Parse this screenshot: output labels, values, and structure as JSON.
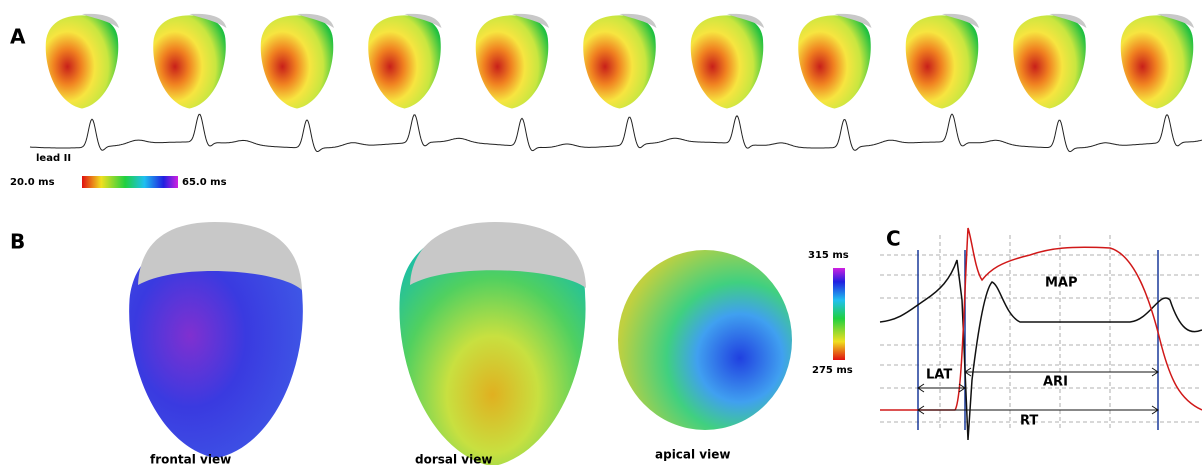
{
  "panels": {
    "a": {
      "label": "A",
      "trace_label": "lead II",
      "colorbar": {
        "min_label": "20.0 ms",
        "max_label": "65.0 ms"
      }
    },
    "b": {
      "label": "B",
      "views": [
        "frontal view",
        "dorsal view",
        "apical view"
      ],
      "colorbar": {
        "max_label": "315 ms",
        "min_label": "275 ms"
      }
    },
    "c": {
      "label": "C",
      "labels": {
        "map": "MAP",
        "lat": "LAT",
        "ari": "ARI",
        "rt": "RT"
      }
    }
  }
}
